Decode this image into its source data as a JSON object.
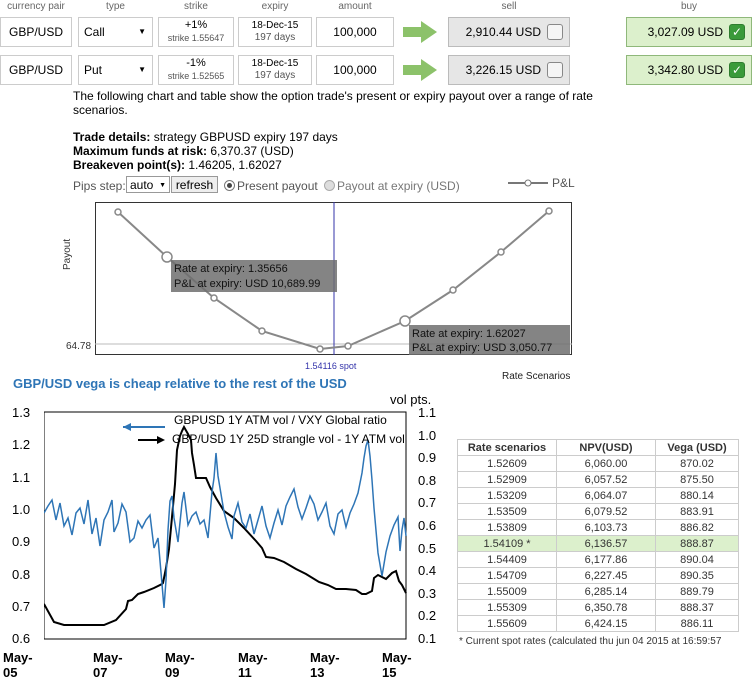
{
  "headers": {
    "pair": "currency pair",
    "type": "type",
    "strike": "strike",
    "expiry": "expiry",
    "amount": "amount",
    "sell": "sell",
    "buy": "buy"
  },
  "rows": [
    {
      "pair": "GBP/USD",
      "type": "Call",
      "strike_pct": "+1%",
      "strike": "strike 1.55647",
      "expiry": "18-Dec-15",
      "days": "197 days",
      "amount": "100,000",
      "sell": "2,910.44 USD",
      "buy": "3,027.09 USD"
    },
    {
      "pair": "GBP/USD",
      "type": "Put",
      "strike_pct": "-1%",
      "strike": "strike 1.52565",
      "expiry": "18-Dec-15",
      "days": "197 days",
      "amount": "100,000",
      "sell": "3,226.15 USD",
      "buy": "3,342.80 USD"
    }
  ],
  "intro": "The following chart and table show the option trade's present or expiry payout over a range of rate scenarios.",
  "details": {
    "trade_label": "Trade details:",
    "trade_value": " strategy GBPUSD expiry 197 days",
    "max_label": "Maximum funds at risk:",
    "max_value": " 6,370.37 (USD)",
    "be_label": "Breakeven point(s):",
    "be_value": " 1.46205, 1.62027"
  },
  "controls": {
    "pips_label": "Pips step:",
    "pips_value": "auto",
    "refresh": "refresh",
    "present": "Present payout",
    "expiry": "Payout at expiry (USD)",
    "legend": "P&L"
  },
  "payout_chart": {
    "ylabel": "Payout",
    "ytick": "64.78",
    "spot": "1.54116 spot",
    "xlabel": "Rate Scenarios",
    "tip1_a": "Rate at expiry: 1.35656",
    "tip1_b": "P&L at expiry: USD 10,689.99",
    "tip2_a": "Rate at expiry: 1.62027",
    "tip2_b": "P&L at expiry: USD 3,050.77"
  },
  "vega_chart": {
    "title": "GBP/USD vega is cheap relative to the rest of the USD",
    "right_unit": "vol pts.",
    "legend1": "GBPUSD 1Y ATM vol / VXY Global ratio",
    "legend2": "GBP/USD 1Y 25D strangle vol - 1Y ATM vol",
    "left_ticks": [
      "1.3",
      "1.2",
      "1.1",
      "1.0",
      "0.9",
      "0.8",
      "0.7",
      "0.6"
    ],
    "right_ticks": [
      "1.1",
      "1.0",
      "0.9",
      "0.8",
      "0.7",
      "0.6",
      "0.5",
      "0.4",
      "0.3",
      "0.2",
      "0.1"
    ],
    "x_ticks": [
      "May-05",
      "May-07",
      "May-09",
      "May-11",
      "May-13",
      "May-15"
    ]
  },
  "table": {
    "headers": [
      "Rate scenarios",
      "NPV(USD)",
      "Vega (USD)"
    ],
    "rows": [
      [
        "1.52609",
        "6,060.00",
        "870.02"
      ],
      [
        "1.52909",
        "6,057.52",
        "875.50"
      ],
      [
        "1.53209",
        "6,064.07",
        "880.14"
      ],
      [
        "1.53509",
        "6,079.52",
        "883.91"
      ],
      [
        "1.53809",
        "6,103.73",
        "886.82"
      ],
      [
        "1.54109 *",
        "6,136.57",
        "888.87"
      ],
      [
        "1.54409",
        "6,177.86",
        "890.04"
      ],
      [
        "1.54709",
        "6,227.45",
        "890.35"
      ],
      [
        "1.55009",
        "6,285.14",
        "889.79"
      ],
      [
        "1.55309",
        "6,350.78",
        "888.37"
      ],
      [
        "1.55609",
        "6,424.15",
        "886.11"
      ]
    ],
    "footnote": "* Current spot rates (calculated thu jun 04 2015 at 16:59:57"
  },
  "colors": {
    "buy_bg": "#dcf0cc",
    "sell_bg": "#e6e6e6",
    "arrow": "#8cc26a",
    "vega_blue": "#2e75b6",
    "spot_line": "#3333aa"
  }
}
